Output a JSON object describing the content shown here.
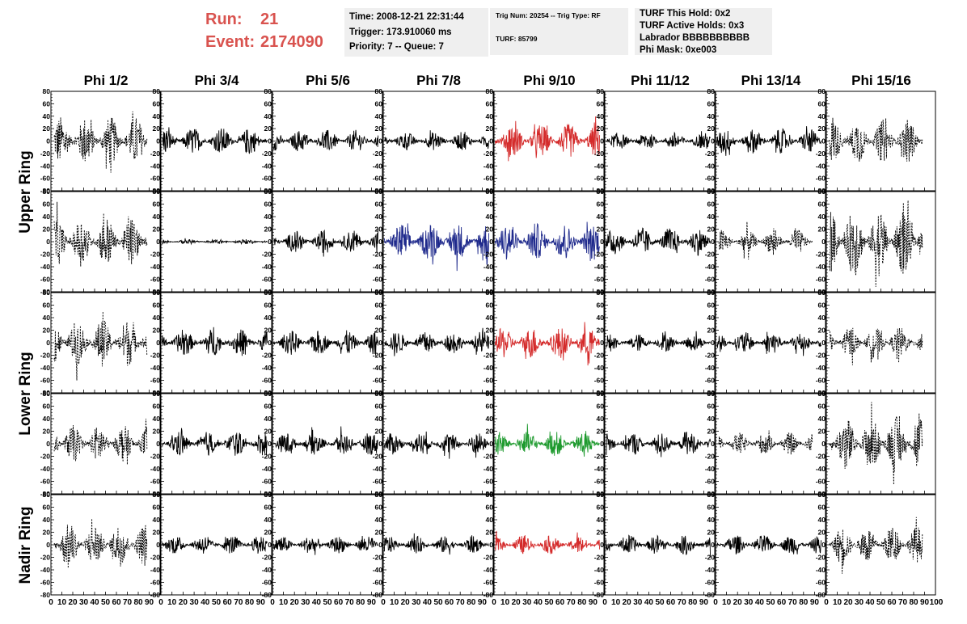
{
  "header": {
    "run_label": "Run:",
    "run_value": "21",
    "event_label": "Event:",
    "event_value": "2174090",
    "time_box": [
      "Time: 2008-12-21 22:31:44",
      "Trigger: 173.910060 ms",
      "Priority: 7 -- Queue: 7"
    ],
    "trig_box": [
      "Trig Num: 20254 -- Trig Type: RF",
      "TURF: 85799"
    ],
    "turf_box": [
      "TURF This Hold: 0x2",
      "TURF Active Holds: 0x3",
      "Labrador BBBBBBBBBB",
      "Phi Mask: 0xe003"
    ]
  },
  "columns": [
    "Phi 1/2",
    "Phi 3/4",
    "Phi 5/6",
    "Phi 7/8",
    "Phi 9/10",
    "Phi 11/12",
    "Phi 13/14",
    "Phi 15/16"
  ],
  "row_labels": [
    "Upper Ring",
    "Lower Ring",
    "Nadir Ring"
  ],
  "y_ticks": [
    80,
    60,
    40,
    20,
    0,
    -20,
    -40,
    -60,
    -80
  ],
  "x_ticks": [
    0,
    10,
    20,
    30,
    40,
    50,
    60,
    70,
    80,
    90
  ],
  "y_range": [
    -80,
    80
  ],
  "x_range": [
    0,
    100
  ],
  "colors": {
    "black": "#000000",
    "red": "#d42a2a",
    "blue": "#1f2a8c",
    "green": "#1e9a2e"
  },
  "traces": [
    [
      "dashed",
      "solid",
      "solid",
      "solid",
      "red",
      "solid",
      "solid",
      "dashed"
    ],
    [
      "dashed",
      "solid",
      "solid",
      "blue",
      "blue",
      "solid",
      "dashed",
      "dashed"
    ],
    [
      "dashed",
      "solid",
      "solid",
      "solid",
      "red",
      "solid",
      "solid",
      "dashed"
    ],
    [
      "dashed",
      "solid",
      "solid",
      "solid",
      "green",
      "solid",
      "dashed",
      "dashed"
    ],
    [
      "dashed",
      "solid",
      "solid",
      "solid",
      "red",
      "solid",
      "solid",
      "dashed"
    ]
  ],
  "amplitudes": [
    [
      40,
      22,
      18,
      15,
      28,
      14,
      20,
      35
    ],
    [
      40,
      4,
      18,
      30,
      30,
      22,
      20,
      55
    ],
    [
      38,
      22,
      20,
      18,
      25,
      14,
      18,
      25
    ],
    [
      30,
      20,
      18,
      18,
      20,
      18,
      18,
      45
    ],
    [
      35,
      15,
      14,
      14,
      15,
      16,
      16,
      30
    ]
  ]
}
